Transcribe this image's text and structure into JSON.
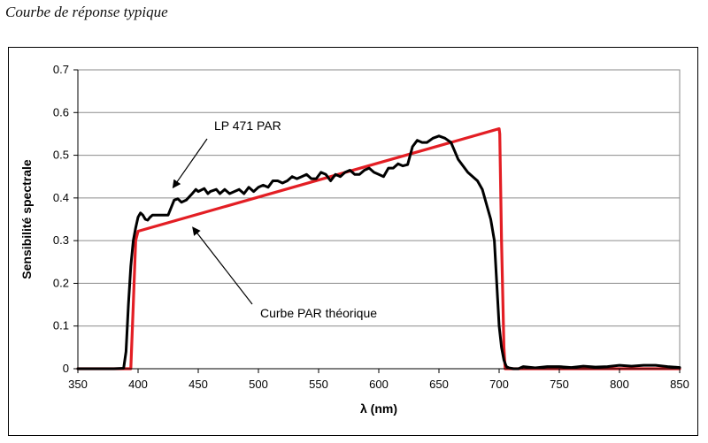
{
  "caption": "Courbe de réponse typique",
  "chart_data": {
    "type": "line",
    "xlabel": "λ (nm)",
    "ylabel": "Sensibilité spectrale",
    "xlim": [
      350,
      850
    ],
    "ylim": [
      0,
      0.7
    ],
    "xticks": [
      350,
      400,
      450,
      500,
      550,
      600,
      650,
      700,
      750,
      800,
      850
    ],
    "yticks": [
      0,
      0.1,
      0.2,
      0.3,
      0.4,
      0.5,
      0.6,
      0.7
    ],
    "ytick_labels": [
      "0",
      "0.1",
      "0.2",
      "0.3",
      "0.4",
      "0.5",
      "0.6",
      "0.7"
    ],
    "grid": "horizontal",
    "series": [
      {
        "name": "LP 471 PAR",
        "color": "#000000",
        "x": [
          350,
          360,
          380,
          388,
          390,
          392,
          394,
          396,
          398,
          400,
          402,
          404,
          406,
          408,
          410,
          412,
          414,
          416,
          420,
          425,
          430,
          433,
          436,
          440,
          445,
          448,
          450,
          455,
          458,
          460,
          465,
          468,
          472,
          476,
          480,
          484,
          488,
          492,
          496,
          500,
          504,
          508,
          512,
          516,
          520,
          524,
          528,
          532,
          536,
          540,
          544,
          548,
          552,
          556,
          560,
          564,
          568,
          572,
          576,
          580,
          584,
          588,
          592,
          596,
          600,
          604,
          608,
          612,
          616,
          620,
          624,
          628,
          632,
          636,
          640,
          645,
          650,
          655,
          660,
          663,
          666,
          670,
          674,
          678,
          682,
          686,
          690,
          693,
          696,
          698,
          700,
          702,
          704,
          706,
          708,
          712,
          716,
          720,
          730,
          740,
          750,
          760,
          770,
          780,
          790,
          800,
          810,
          820,
          830,
          840,
          850
        ],
        "values": [
          0,
          0,
          0,
          0.001,
          0.04,
          0.15,
          0.24,
          0.3,
          0.33,
          0.355,
          0.365,
          0.36,
          0.35,
          0.348,
          0.355,
          0.36,
          0.36,
          0.36,
          0.36,
          0.36,
          0.395,
          0.398,
          0.39,
          0.395,
          0.41,
          0.42,
          0.415,
          0.422,
          0.41,
          0.415,
          0.42,
          0.41,
          0.42,
          0.41,
          0.415,
          0.42,
          0.41,
          0.425,
          0.415,
          0.425,
          0.43,
          0.425,
          0.44,
          0.44,
          0.435,
          0.44,
          0.45,
          0.445,
          0.45,
          0.455,
          0.445,
          0.445,
          0.46,
          0.455,
          0.44,
          0.455,
          0.45,
          0.46,
          0.465,
          0.455,
          0.455,
          0.465,
          0.47,
          0.46,
          0.455,
          0.45,
          0.47,
          0.47,
          0.48,
          0.475,
          0.478,
          0.52,
          0.535,
          0.53,
          0.53,
          0.54,
          0.545,
          0.54,
          0.53,
          0.51,
          0.49,
          0.475,
          0.46,
          0.45,
          0.44,
          0.42,
          0.38,
          0.35,
          0.3,
          0.2,
          0.1,
          0.05,
          0.02,
          0.005,
          0.002,
          0,
          0,
          0.005,
          0.002,
          0.005,
          0.005,
          0.003,
          0.006,
          0.004,
          0.005,
          0.008,
          0.006,
          0.008,
          0.008,
          0.005,
          0.003
        ]
      },
      {
        "name": "Curbe PAR théorique",
        "color": "#e31e24",
        "x": [
          350,
          390,
          394,
          396,
          398,
          400,
          700,
          700.5,
          702,
          704,
          705,
          720,
          850
        ],
        "values": [
          0,
          0,
          0,
          0.15,
          0.3,
          0.322,
          0.562,
          0.55,
          0.3,
          0.05,
          0,
          0,
          0
        ]
      }
    ],
    "annotations": [
      {
        "text": "LP 471 PAR",
        "points_to": {
          "x": 432,
          "y": 0.42
        }
      },
      {
        "text": "Curbe PAR théorique",
        "points_to": {
          "x": 444,
          "y": 0.335
        }
      }
    ]
  }
}
